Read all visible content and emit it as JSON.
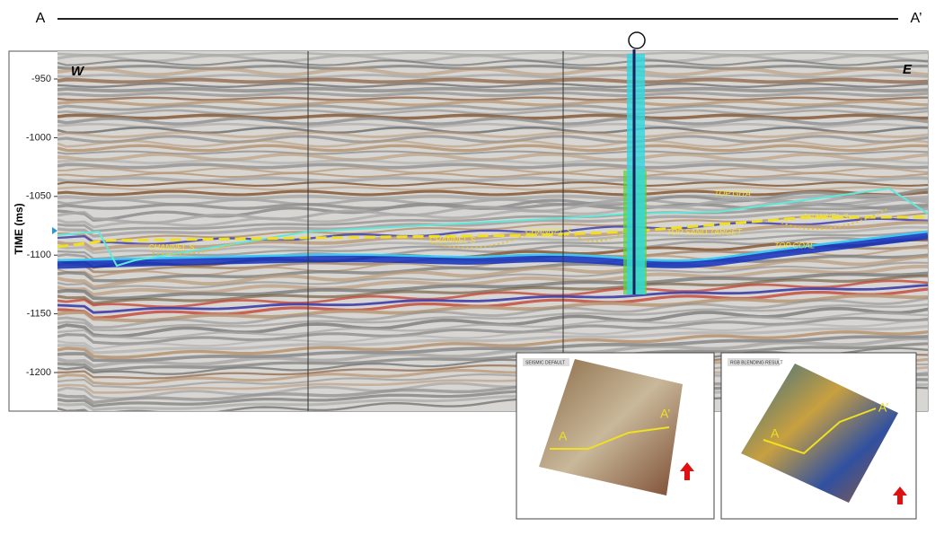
{
  "section": {
    "start_label": "A",
    "end_label": "A’",
    "west_label": "W",
    "east_label": "E",
    "y_axis": {
      "label": "TIME (ms)",
      "ticks": [
        "-950",
        "-1000",
        "-1050",
        "-1100",
        "-1150",
        "-1200"
      ]
    },
    "annotations": [
      "CHANNEL S",
      "CHANNEL S",
      "CHANNEL S",
      "TOP GITA",
      "CHANNEL S",
      "TOP SAND TARGET",
      "TOP COAL"
    ]
  },
  "insets": [
    {
      "title": "SEISMIC DEFAULT",
      "start_label": "A",
      "end_label": "A’"
    },
    {
      "title": "RGB BLENDING RESULT",
      "start_label": "A",
      "end_label": "A’"
    }
  ]
}
